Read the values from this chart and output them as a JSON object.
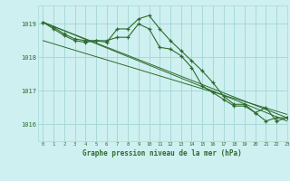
{
  "bg_color": "#cff0f0",
  "grid_color": "#a8d8d8",
  "line_color": "#2d6b2d",
  "title": "Graphe pression niveau de la mer (hPa)",
  "xlim": [
    -0.5,
    23
  ],
  "ylim": [
    1015.5,
    1019.55
  ],
  "yticks": [
    1016,
    1017,
    1018,
    1019
  ],
  "xticks": [
    0,
    1,
    2,
    3,
    4,
    5,
    6,
    7,
    8,
    9,
    10,
    11,
    12,
    13,
    14,
    15,
    16,
    17,
    18,
    19,
    20,
    21,
    22,
    23
  ],
  "series1_x": [
    0,
    1,
    2,
    3,
    4,
    5,
    6,
    7,
    8,
    9,
    10,
    11,
    12,
    13,
    14,
    15,
    16,
    17,
    18,
    19,
    20,
    21,
    22,
    23
  ],
  "series1_y": [
    1019.05,
    1018.9,
    1018.7,
    1018.55,
    1018.5,
    1018.5,
    1018.45,
    1018.85,
    1018.85,
    1019.15,
    1019.25,
    1018.85,
    1018.5,
    1018.2,
    1017.9,
    1017.6,
    1017.25,
    1016.85,
    1016.6,
    1016.6,
    1016.35,
    1016.1,
    1016.2,
    1016.2
  ],
  "series2_x": [
    0,
    1,
    2,
    3,
    4,
    5,
    6,
    7,
    8,
    9,
    10,
    11,
    12,
    13,
    14,
    15,
    16,
    17,
    18,
    19,
    20,
    21,
    22,
    23
  ],
  "series2_y": [
    1019.05,
    1018.85,
    1018.65,
    1018.5,
    1018.45,
    1018.5,
    1018.5,
    1018.6,
    1018.6,
    1019.0,
    1018.85,
    1018.3,
    1018.25,
    1018.05,
    1017.7,
    1017.15,
    1016.95,
    1016.75,
    1016.55,
    1016.55,
    1016.35,
    1016.5,
    1016.1,
    1016.2
  ],
  "trend1_x": [
    0,
    23
  ],
  "trend1_y": [
    1019.05,
    1016.1
  ],
  "trend2_x": [
    0,
    23
  ],
  "trend2_y": [
    1019.05,
    1016.2
  ],
  "trend3_x": [
    0,
    23
  ],
  "trend3_y": [
    1018.5,
    1016.3
  ]
}
